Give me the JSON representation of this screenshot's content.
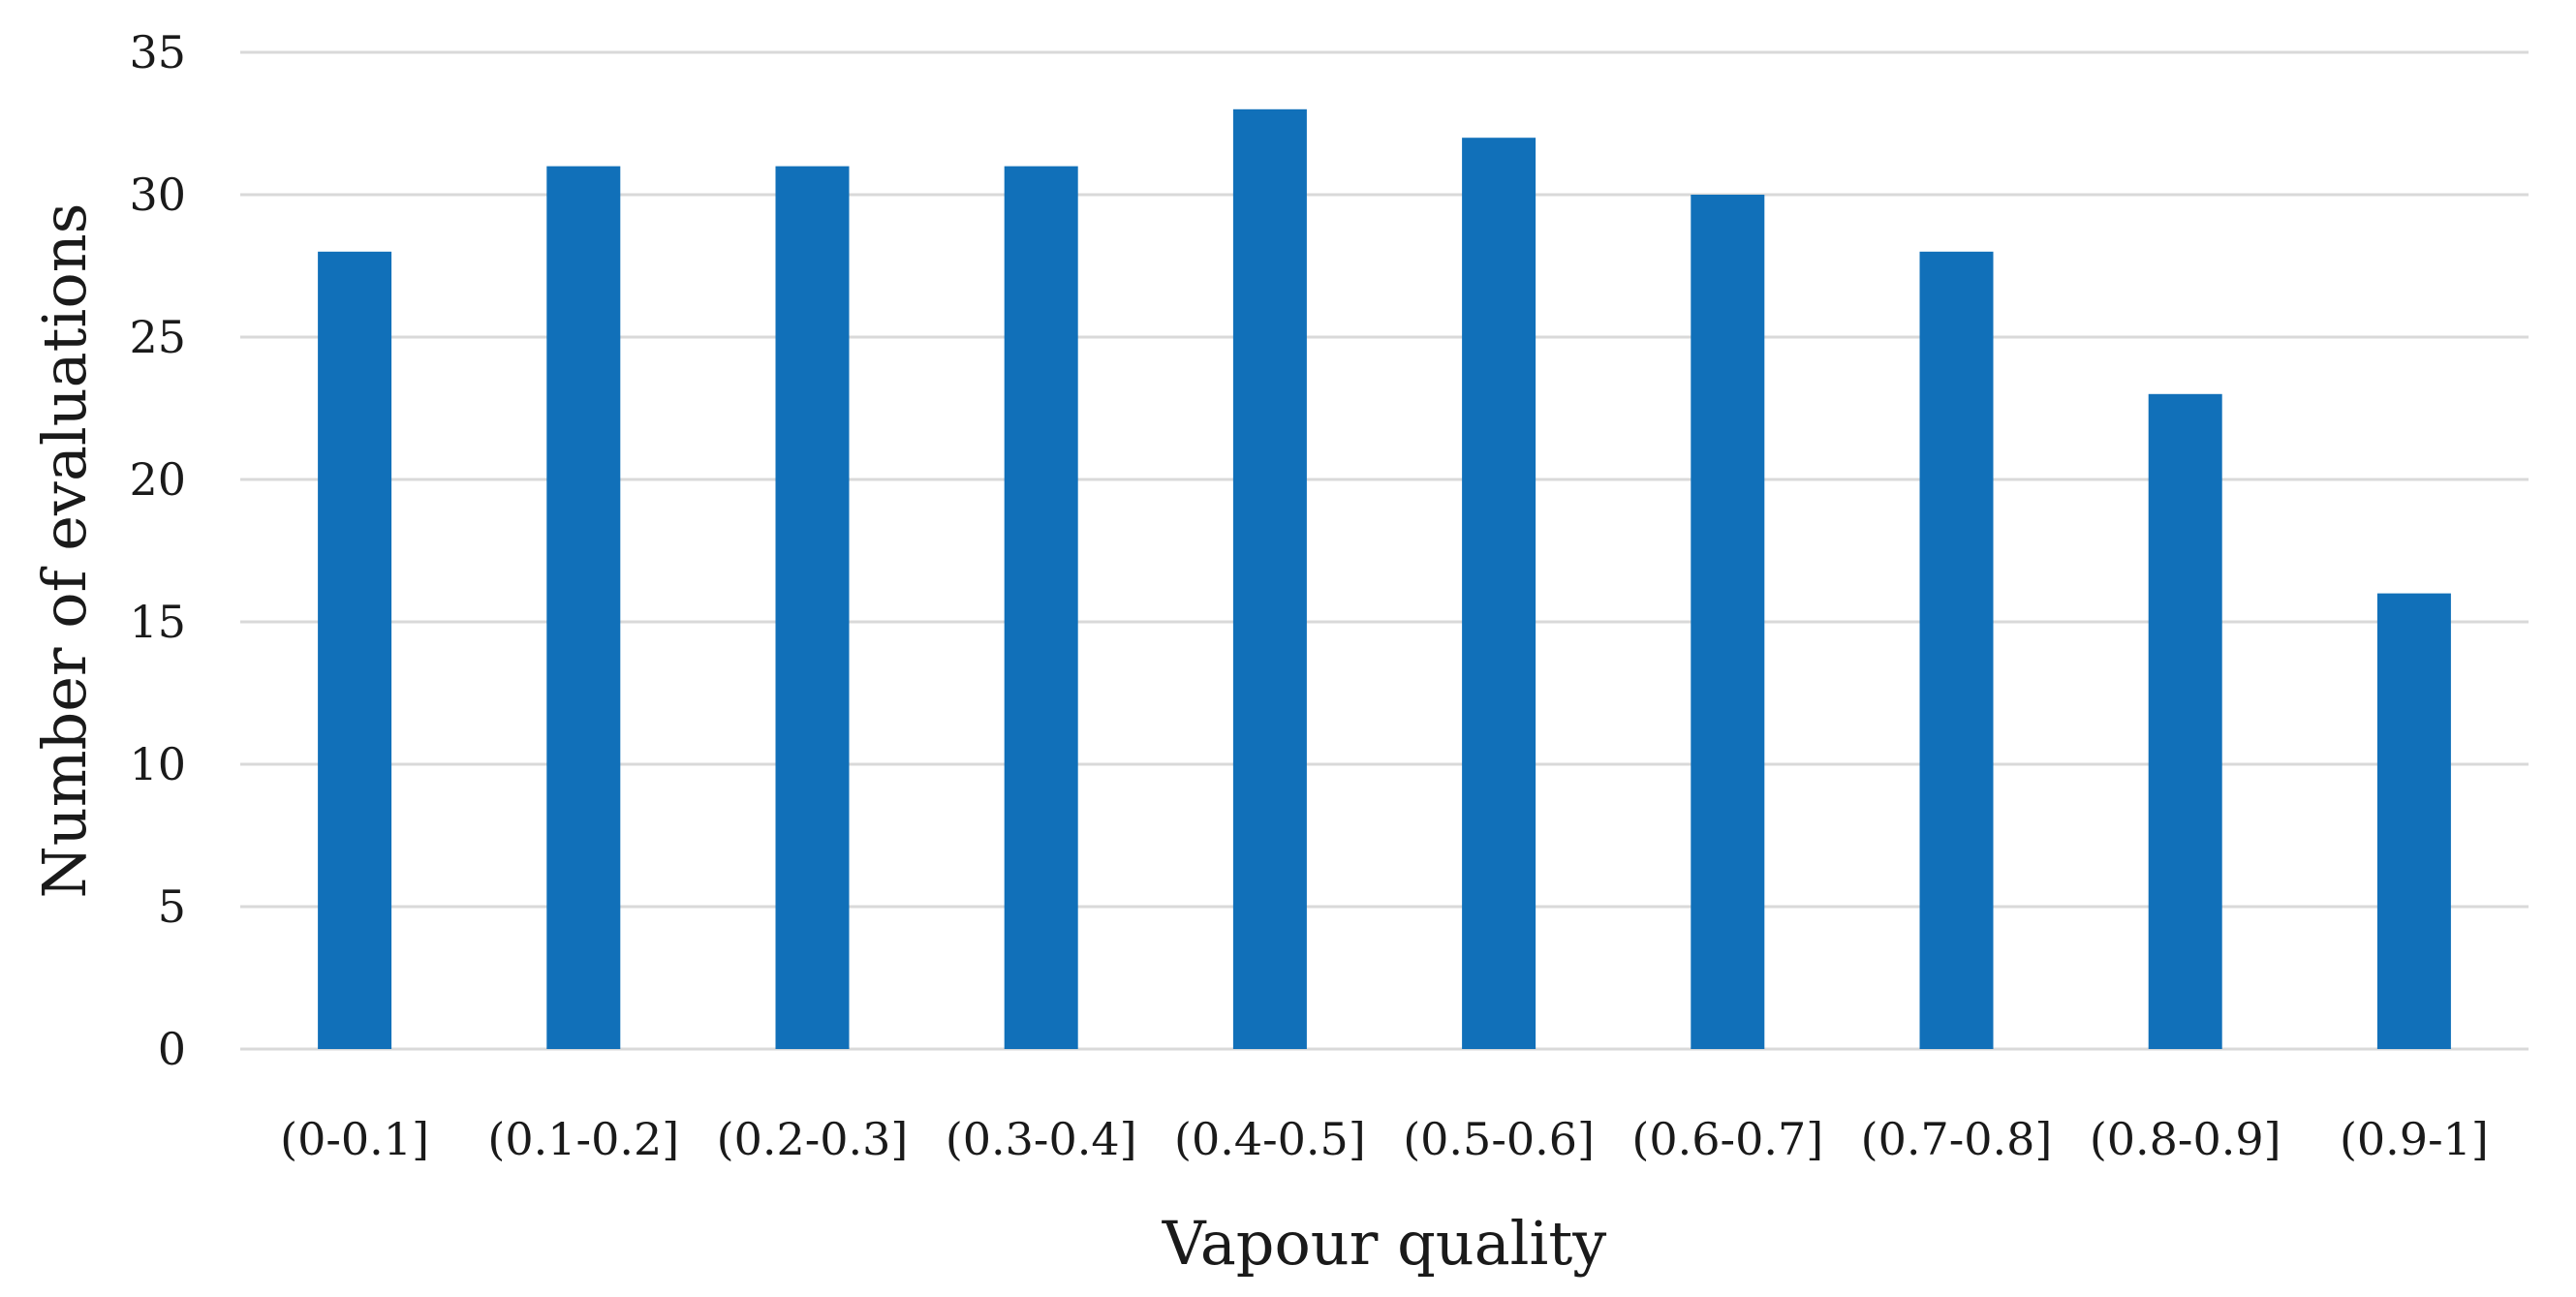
{
  "chart_data": {
    "type": "bar",
    "title": "",
    "xlabel": "Vapour quality",
    "ylabel": "Number of evaluations",
    "categories": [
      "(0-0.1]",
      "(0.1-0.2]",
      "(0.2-0.3]",
      "(0.3-0.4]",
      "(0.4-0.5]",
      "(0.5-0.6]",
      "(0.6-0.7]",
      "(0.7-0.8]",
      "(0.8-0.9]",
      "(0.9-1]"
    ],
    "values": [
      28,
      31,
      31,
      31,
      33,
      32,
      30,
      28,
      23,
      16
    ],
    "ylim": [
      0,
      35
    ],
    "yticks": [
      0,
      5,
      10,
      15,
      20,
      25,
      30,
      35
    ],
    "grid": true,
    "legend": "none",
    "bar_color": "#1170b9"
  }
}
